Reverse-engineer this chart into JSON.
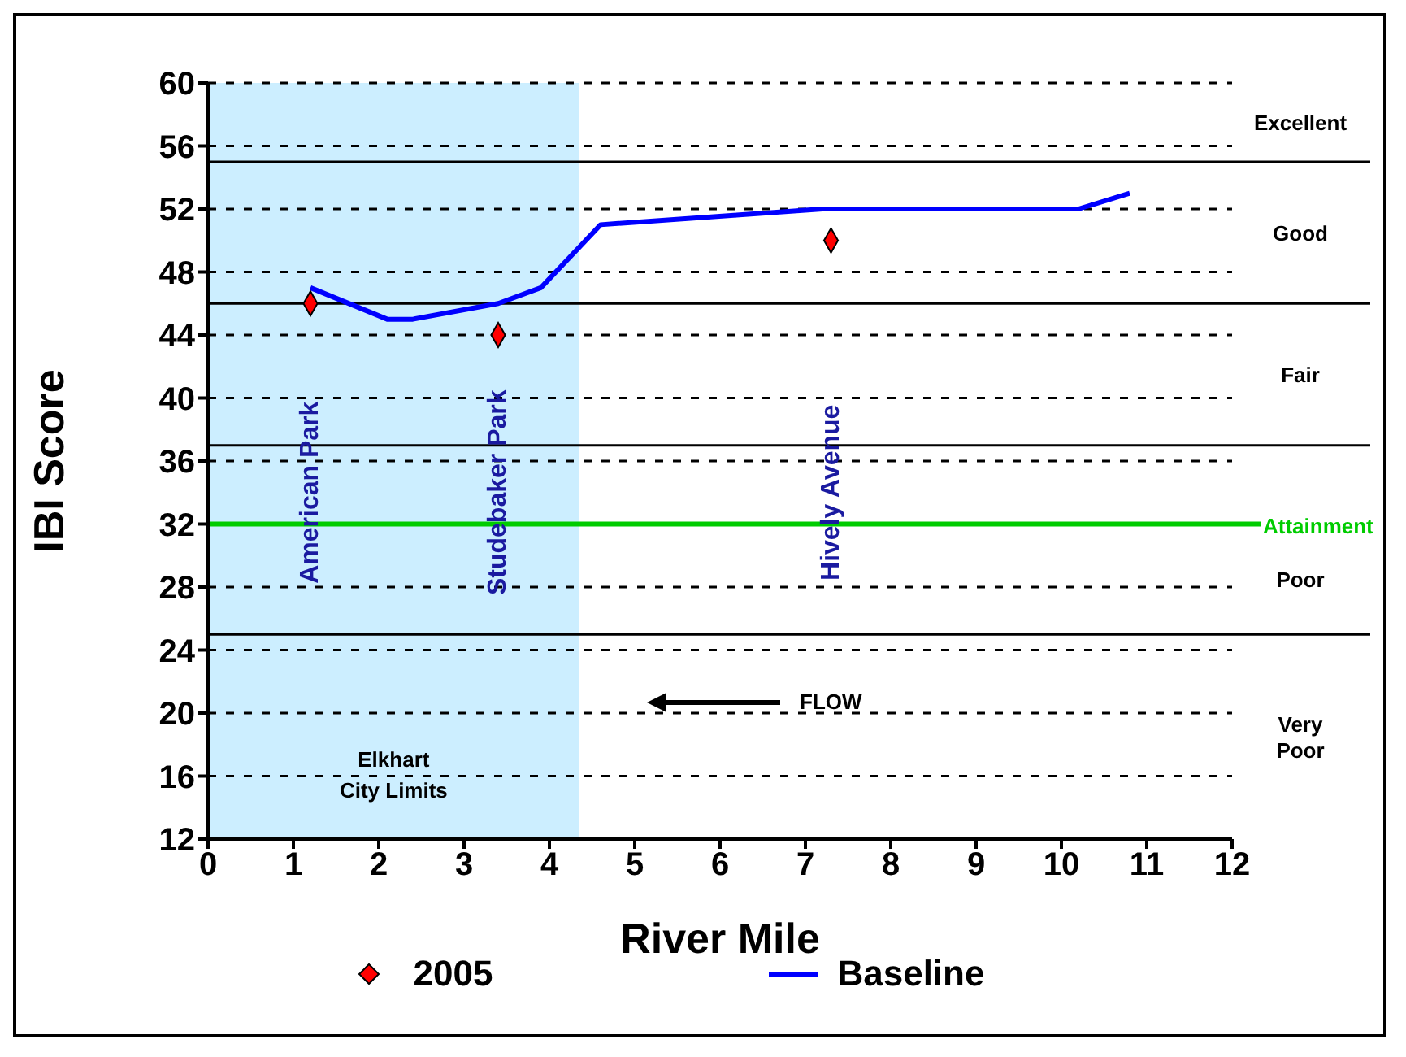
{
  "chart_data": {
    "type": "line",
    "xlabel": "River Mile",
    "ylabel": "IBI Score",
    "xlim": [
      0,
      12
    ],
    "xticks": [
      0,
      1,
      2,
      3,
      4,
      5,
      6,
      7,
      8,
      9,
      10,
      11,
      12
    ],
    "ylim": [
      12,
      60
    ],
    "yticks": [
      12,
      16,
      20,
      24,
      28,
      32,
      36,
      40,
      44,
      48,
      52,
      56,
      60
    ],
    "grid": "y",
    "legend": "bottom",
    "series": [
      {
        "name": "2005",
        "type": "scatter",
        "color": "#ff0000",
        "marker": "diamond",
        "x": [
          1.2,
          3.4,
          7.3
        ],
        "values": [
          46,
          44,
          50
        ]
      },
      {
        "name": "Baseline",
        "color": "#0000ff",
        "marker": "none",
        "line_style": "solid",
        "x": [
          1.2,
          2.1,
          2.4,
          3.4,
          3.9,
          4.6,
          7.2,
          10.2,
          10.8
        ],
        "values": [
          47,
          45,
          45,
          46,
          47,
          51,
          52,
          52,
          53
        ]
      }
    ],
    "bands": [
      {
        "axis": "x",
        "from": 0,
        "to": 4.35,
        "label": "Elkhart City Limits",
        "color": "#cceeff"
      }
    ],
    "ref_lines": [
      {
        "axis": "y",
        "value": 32,
        "label": "Attainment",
        "color": "#00cc00"
      },
      {
        "axis": "y",
        "value": 55,
        "color": "#000000"
      },
      {
        "axis": "y",
        "value": 46,
        "color": "#000000"
      },
      {
        "axis": "y",
        "value": 37,
        "color": "#000000"
      },
      {
        "axis": "y",
        "value": 25,
        "color": "#000000"
      }
    ],
    "annotations": [
      "American Park",
      "Studebaker Park",
      "Hively Avenue",
      "FLOW",
      "Excellent",
      "Good",
      "Fair",
      "Poor",
      "Very Poor"
    ]
  }
}
